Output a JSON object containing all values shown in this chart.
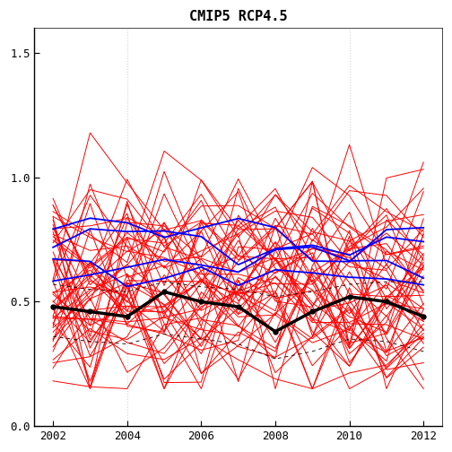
{
  "title": "CMIP5 RCP4.5",
  "xlim": [
    2001.5,
    2012.5
  ],
  "ylim": [
    0.0,
    1.6
  ],
  "xticks": [
    2002,
    2004,
    2006,
    2008,
    2010,
    2012
  ],
  "yticks": [
    0.0,
    0.5,
    1.0,
    1.5
  ],
  "vlines": [
    2004,
    2010
  ],
  "black_line_x": [
    2002,
    2003,
    2004,
    2005,
    2006,
    2007,
    2008,
    2009,
    2010,
    2011,
    2012
  ],
  "black_line_y": [
    0.48,
    0.46,
    0.44,
    0.54,
    0.5,
    0.48,
    0.38,
    0.46,
    0.52,
    0.5,
    0.44
  ],
  "dashed_upper_y": [
    0.57,
    0.55,
    0.54,
    0.58,
    0.56,
    0.55,
    0.52,
    0.54,
    0.57,
    0.58,
    0.58
  ],
  "dashed_lower_y": [
    0.36,
    0.34,
    0.33,
    0.37,
    0.35,
    0.33,
    0.27,
    0.3,
    0.35,
    0.34,
    0.3
  ],
  "seed": 12,
  "n_red_lines": 50,
  "n_blue_lines": 4,
  "background_color": "#ffffff",
  "red_color": "#ff0000",
  "blue_color": "#0000ff",
  "black_color": "#000000"
}
